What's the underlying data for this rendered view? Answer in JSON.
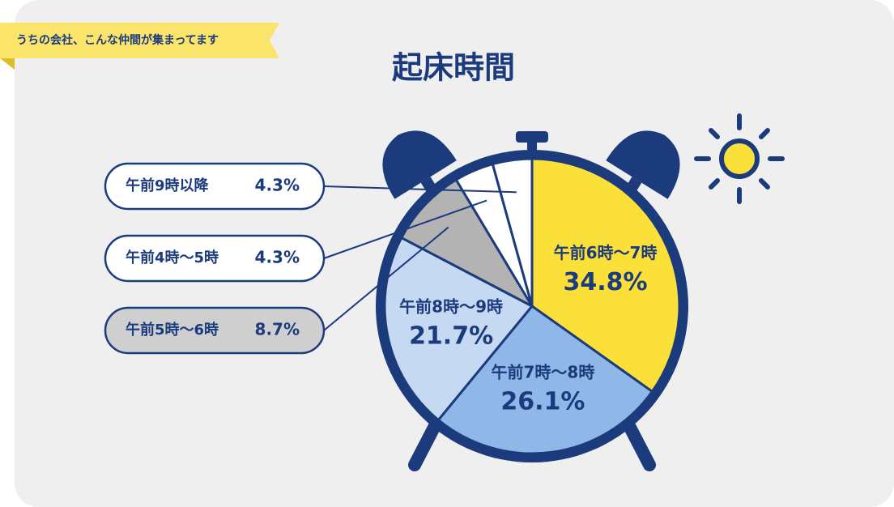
{
  "banner": "うちの会社、こんな仲間が集まってます",
  "chart_data": {
    "type": "pie",
    "title": "起床時間",
    "categories": [
      "午前6時〜7時",
      "午前7時〜8時",
      "午前8時〜9時",
      "午前5時〜6時",
      "午前4時〜5時",
      "午前9時以降"
    ],
    "values": [
      34.8,
      26.1,
      21.7,
      8.7,
      4.3,
      4.3
    ],
    "value_labels": [
      "34.8%",
      "26.1%",
      "21.7%",
      "8.7%",
      "4.3%",
      "4.3%"
    ],
    "colors": [
      "#fbe03a",
      "#8fb8e8",
      "#c5d9f2",
      "#b3b3b3",
      "#ffffff",
      "#ffffff"
    ]
  }
}
